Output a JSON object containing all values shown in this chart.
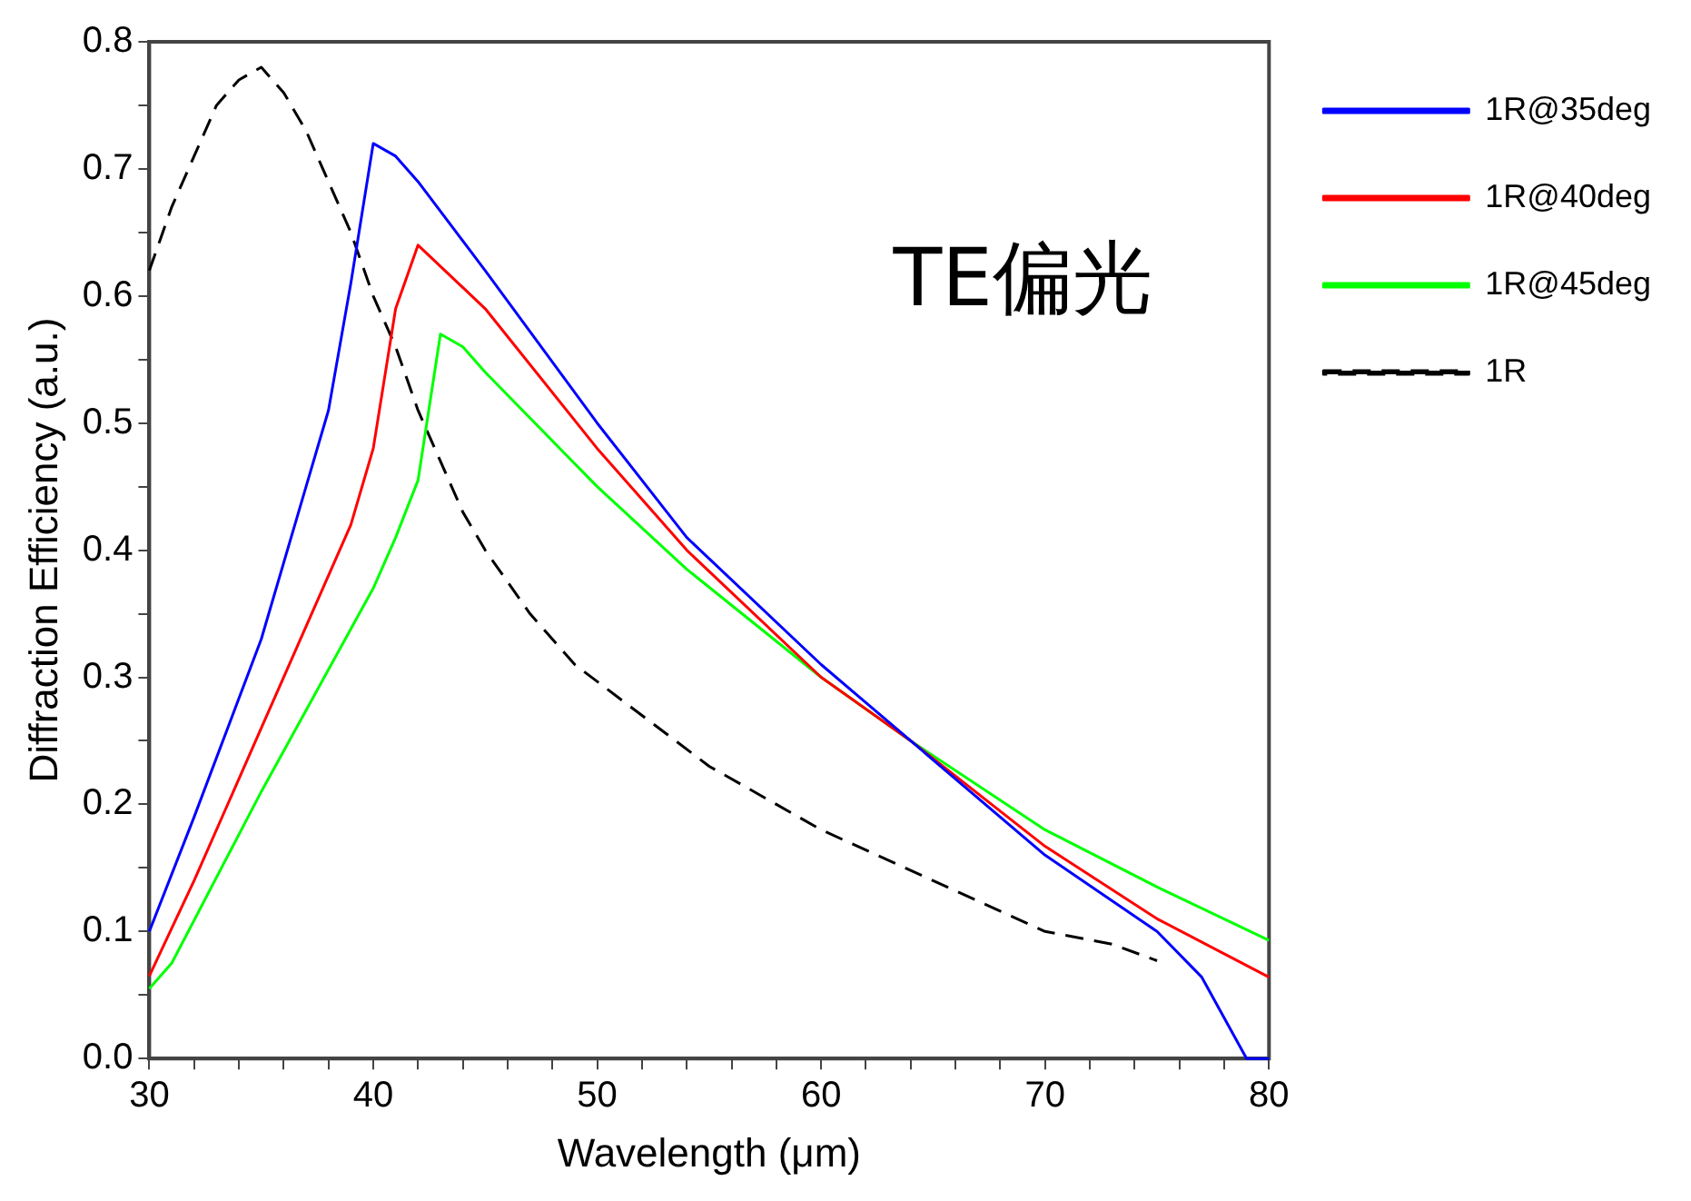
{
  "chart_data": {
    "type": "line",
    "xlabel": "Wavelength (μm)",
    "ylabel": "Diffraction Efficiency (a.u.)",
    "annotations": [
      "TE偏光"
    ],
    "xlim": [
      30,
      80
    ],
    "ylim": [
      0,
      0.8
    ],
    "xticks": [
      30,
      {
        "value": 32,
        "label": null
      },
      {
        "value": 34,
        "label": null
      },
      {
        "value": 36,
        "label": null
      },
      {
        "value": 38,
        "label": null
      },
      40,
      {
        "value": 42,
        "label": null
      },
      {
        "value": 44,
        "label": null
      },
      {
        "value": 46,
        "label": null
      },
      {
        "value": 48,
        "label": null
      },
      50,
      {
        "value": 52,
        "label": null
      },
      {
        "value": 54,
        "label": null
      },
      {
        "value": 56,
        "label": null
      },
      {
        "value": 58,
        "label": null
      },
      60,
      {
        "value": 62,
        "label": null
      },
      {
        "value": 64,
        "label": null
      },
      {
        "value": 66,
        "label": null
      },
      {
        "value": 68,
        "label": null
      },
      70,
      {
        "value": 72,
        "label": null
      },
      {
        "value": 74,
        "label": null
      },
      {
        "value": 76,
        "label": null
      },
      {
        "value": 78,
        "label": null
      },
      80
    ],
    "yticks": [
      {
        "value": 0,
        "label": "0.0"
      },
      {
        "value": 0.05,
        "label": null
      },
      0.1,
      {
        "value": 0.15,
        "label": null
      },
      0.2,
      {
        "value": 0.25,
        "label": null
      },
      0.3,
      {
        "value": 0.35,
        "label": null
      },
      0.4,
      {
        "value": 0.45,
        "label": null
      },
      0.5,
      {
        "value": 0.55,
        "label": null
      },
      0.6,
      {
        "value": 0.65,
        "label": null
      },
      0.7,
      {
        "value": 0.75,
        "label": null
      },
      0.8
    ],
    "grid": false,
    "legend": "top right",
    "marker": "none",
    "series": [
      {
        "name": "1R@35deg",
        "color": "#0000ff",
        "line_style": "solid",
        "x": [
          30,
          32,
          35,
          37,
          38,
          39,
          40,
          41,
          42,
          45,
          50,
          54,
          60,
          64,
          70,
          75,
          77,
          79,
          80
        ],
        "values": [
          0.1,
          0.19,
          0.33,
          0.45,
          0.51,
          0.61,
          0.72,
          0.71,
          0.69,
          0.62,
          0.5,
          0.41,
          0.31,
          0.25,
          0.16,
          0.1,
          0.064,
          0,
          0
        ]
      },
      {
        "name": "1R@40deg",
        "color": "#ff0000",
        "line_style": "solid",
        "x": [
          30,
          32,
          35,
          39,
          40,
          41,
          42,
          45,
          50,
          54,
          60,
          64,
          70,
          75,
          80
        ],
        "values": [
          0.065,
          0.14,
          0.26,
          0.42,
          0.48,
          0.59,
          0.64,
          0.59,
          0.48,
          0.4,
          0.3,
          0.25,
          0.167,
          0.11,
          0.064
        ]
      },
      {
        "name": "1R@45deg",
        "color": "#00ff00",
        "line_style": "solid",
        "x": [
          30,
          31,
          35,
          40,
          41,
          42,
          43,
          44,
          45,
          50,
          54,
          60,
          64,
          70,
          75,
          80
        ],
        "values": [
          0.055,
          0.075,
          0.21,
          0.37,
          0.41,
          0.455,
          0.57,
          0.56,
          0.54,
          0.45,
          0.385,
          0.3,
          0.25,
          0.18,
          0.135,
          0.093
        ]
      },
      {
        "name": "1R",
        "color": "#000000",
        "line_style": "dashed",
        "x": [
          30,
          31,
          32,
          33,
          34,
          35,
          36,
          37,
          38,
          39,
          40,
          41,
          42,
          43,
          44,
          45,
          47,
          49,
          52,
          55,
          58,
          60,
          65,
          70,
          73,
          75
        ],
        "values": [
          0.62,
          0.67,
          0.71,
          0.75,
          0.77,
          0.78,
          0.76,
          0.73,
          0.69,
          0.65,
          0.6,
          0.56,
          0.51,
          0.47,
          0.43,
          0.4,
          0.35,
          0.31,
          0.27,
          0.23,
          0.2,
          0.18,
          0.14,
          0.1,
          0.09,
          0.077
        ]
      }
    ]
  }
}
